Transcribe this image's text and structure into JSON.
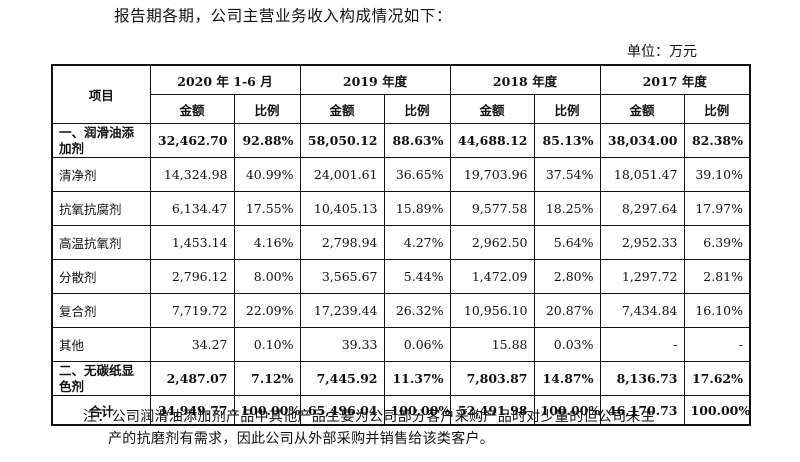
{
  "intro": "报告期各期，公司主营业务收入构成情况如下：",
  "unit": "单位：万元",
  "table": {
    "item_header": "项目",
    "periods": [
      "2020 年 1-6 月",
      "2019 年度",
      "2018 年度",
      "2017 年度"
    ],
    "amount_label": "金额",
    "ratio_label": "比例",
    "rows": [
      {
        "label": "一、润滑油添加剂",
        "values": [
          "32,462.70",
          "92.88%",
          "58,050.12",
          "88.63%",
          "44,688.12",
          "85.13%",
          "38,034.00",
          "82.38%"
        ]
      },
      {
        "label": "清净剂",
        "values": [
          "14,324.98",
          "40.99%",
          "24,001.61",
          "36.65%",
          "19,703.96",
          "37.54%",
          "18,051.47",
          "39.10%"
        ]
      },
      {
        "label": "抗氧抗腐剂",
        "values": [
          "6,134.47",
          "17.55%",
          "10,405.13",
          "15.89%",
          "9,577.58",
          "18.25%",
          "8,297.64",
          "17.97%"
        ]
      },
      {
        "label": "高温抗氧剂",
        "values": [
          "1,453.14",
          "4.16%",
          "2,798.94",
          "4.27%",
          "2,962.50",
          "5.64%",
          "2,952.33",
          "6.39%"
        ]
      },
      {
        "label": "分散剂",
        "values": [
          "2,796.12",
          "8.00%",
          "3,565.67",
          "5.44%",
          "1,472.09",
          "2.80%",
          "1,297.72",
          "2.81%"
        ]
      },
      {
        "label": "复合剂",
        "values": [
          "7,719.72",
          "22.09%",
          "17,239.44",
          "26.32%",
          "10,956.10",
          "20.87%",
          "7,434.84",
          "16.10%"
        ]
      },
      {
        "label": "其他",
        "values": [
          "34.27",
          "0.10%",
          "39.33",
          "0.06%",
          "15.88",
          "0.03%",
          "-",
          "-"
        ]
      },
      {
        "label": "二、无碳纸显色剂",
        "values": [
          "2,487.07",
          "7.12%",
          "7,445.92",
          "11.37%",
          "7,803.87",
          "14.87%",
          "8,136.73",
          "17.62%"
        ]
      },
      {
        "label": "合计",
        "values": [
          "34,949.77",
          "100.00%",
          "65,496.04",
          "100.00%",
          "52,491.98",
          "100.00%",
          "46,170.73",
          "100.00%"
        ]
      }
    ]
  },
  "note": {
    "line1": "注：公司润滑油添加剂产品中其他产品主要为公司部分客户采购产品时对少量的但公司未生",
    "line2": "产的抗磨剂有需求，因此公司从外部采购并销售给该类客户。"
  }
}
